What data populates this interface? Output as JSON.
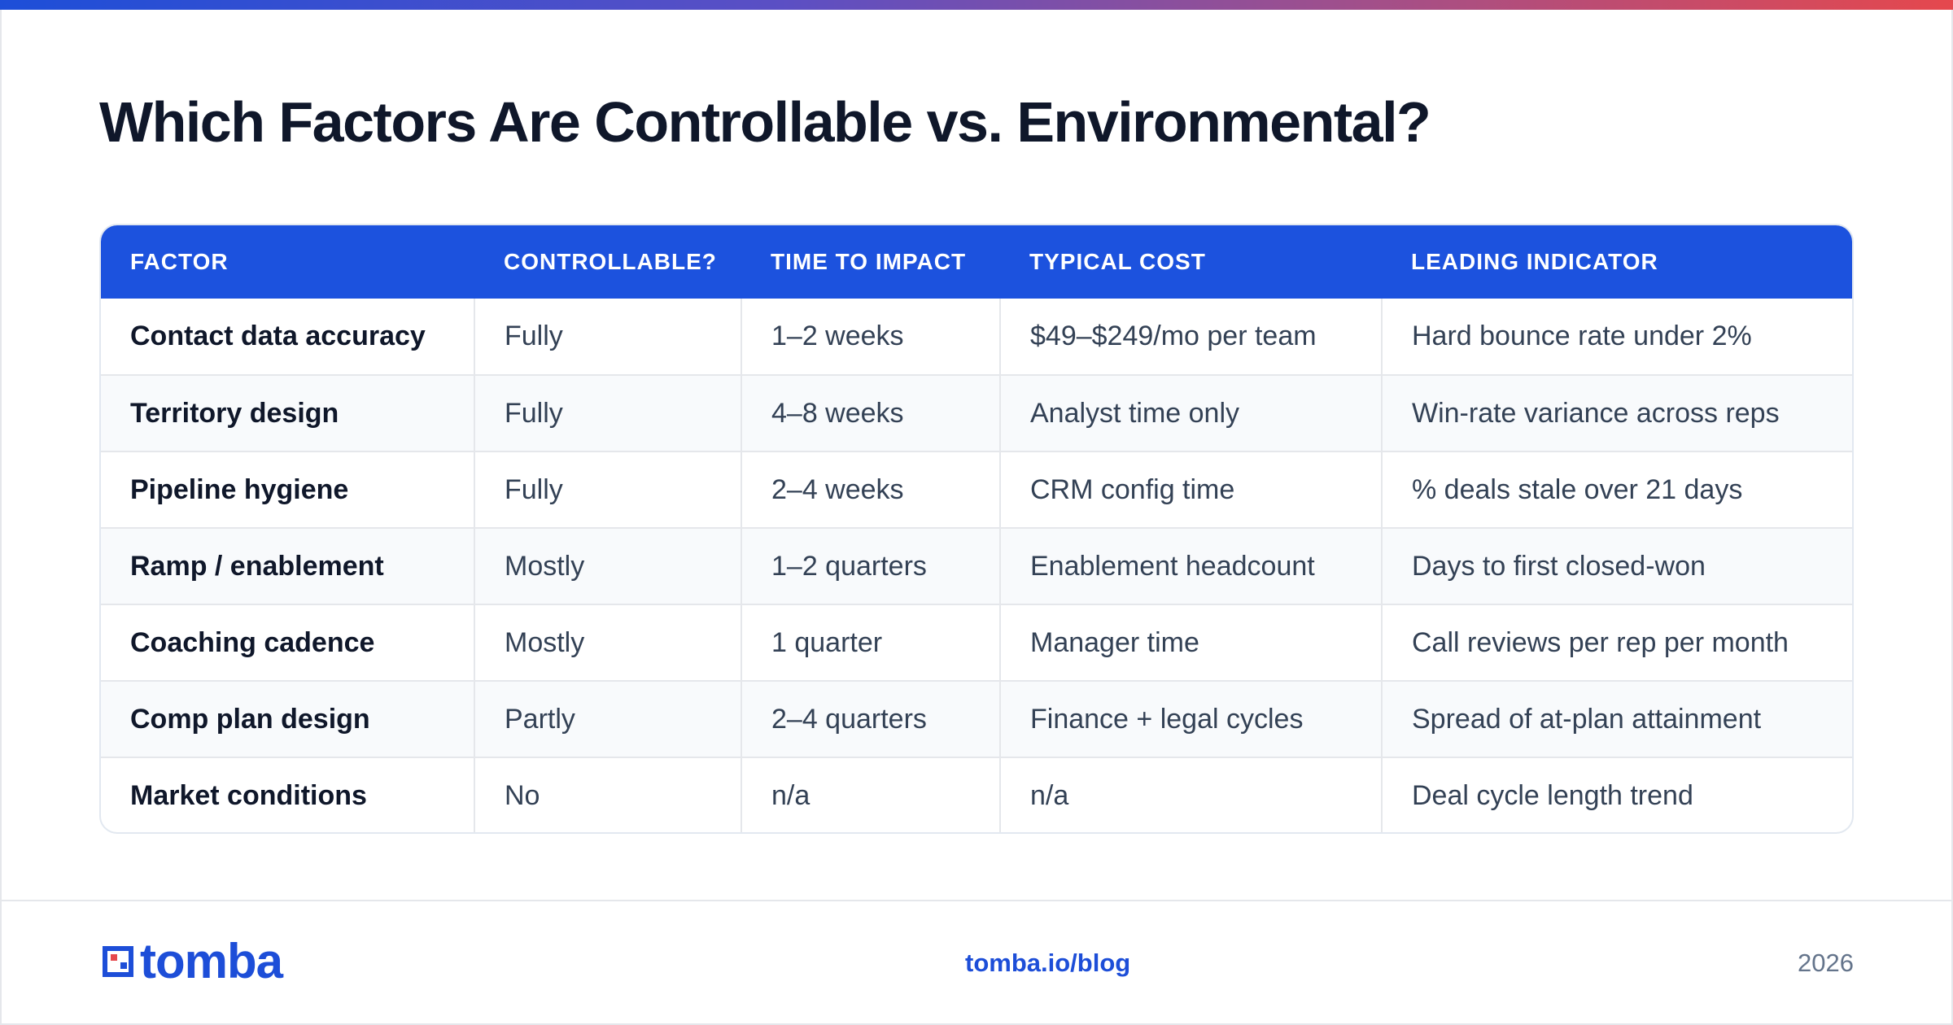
{
  "title": "Which Factors Are Controllable vs. Environmental?",
  "table": {
    "headers": [
      "FACTOR",
      "CONTROLLABLE?",
      "TIME TO IMPACT",
      "TYPICAL COST",
      "LEADING INDICATOR"
    ],
    "rows": [
      [
        "Contact data accuracy",
        "Fully",
        "1–2 weeks",
        "$49–$249/mo per team",
        "Hard bounce rate under 2%"
      ],
      [
        "Territory design",
        "Fully",
        "4–8 weeks",
        "Analyst time only",
        "Win-rate variance across reps"
      ],
      [
        "Pipeline hygiene",
        "Fully",
        "2–4 weeks",
        "CRM config time",
        "% deals stale over 21 days"
      ],
      [
        "Ramp / enablement",
        "Mostly",
        "1–2 quarters",
        "Enablement headcount",
        "Days to first closed-won"
      ],
      [
        "Coaching cadence",
        "Mostly",
        "1 quarter",
        "Manager time",
        "Call reviews per rep per month"
      ],
      [
        "Comp plan design",
        "Partly",
        "2–4 quarters",
        "Finance + legal cycles",
        "Spread of at-plan attainment"
      ],
      [
        "Market conditions",
        "No",
        "n/a",
        "n/a",
        "Deal cycle length trend"
      ]
    ]
  },
  "footer": {
    "logo_text": "tomba",
    "link": "tomba.io/blog",
    "year": "2026"
  },
  "colors": {
    "header_bg": "#1c52de",
    "brand_blue": "#1d4ed8",
    "brand_red": "#e5484d"
  }
}
